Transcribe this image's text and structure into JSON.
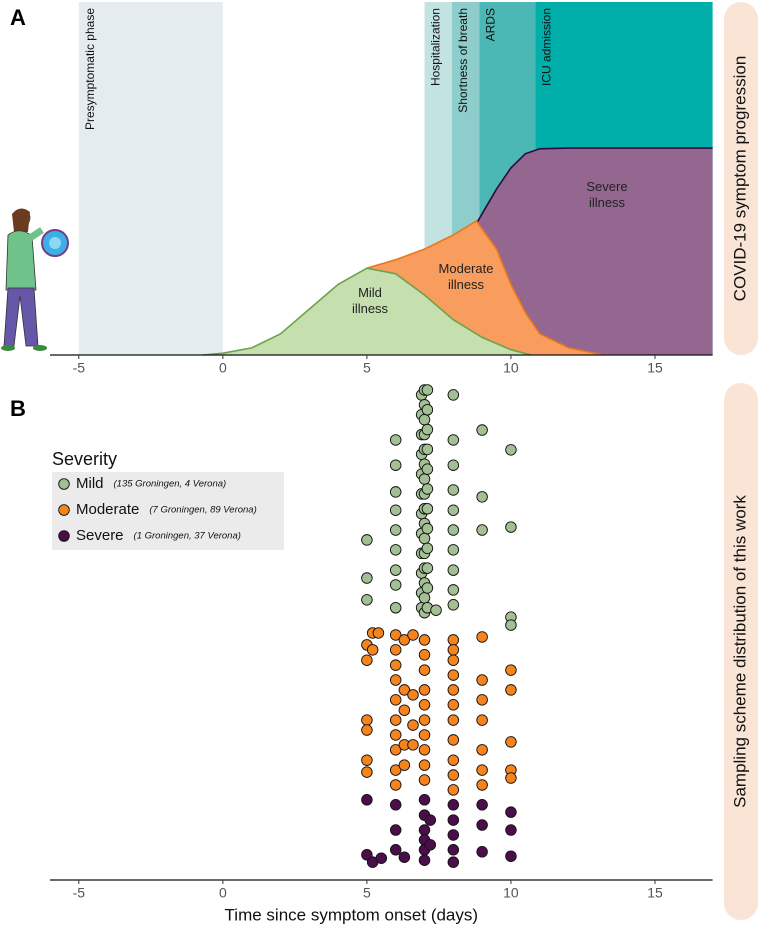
{
  "chart_data": [
    {
      "type": "area",
      "panel": "A",
      "title": "COVID-19 symptom progression",
      "xlim": [
        -6,
        17
      ],
      "xticks": [
        -5,
        0,
        5,
        10,
        15
      ],
      "ylim": [
        0,
        100
      ],
      "spans": [
        {
          "label": "Presymptomatic phase",
          "start": -5,
          "end": 0,
          "color": "#e5ecef"
        },
        {
          "label": "Hospitalization",
          "start": 7,
          "end": 7.95,
          "color": "#c3e3e3"
        },
        {
          "label": "Shortness of breath",
          "start": 7.95,
          "end": 8.9,
          "color": "#8dcdcb"
        },
        {
          "label": "ARDS",
          "start": 8.9,
          "end": 10.85,
          "color": "#4cb8b6"
        },
        {
          "label": "ICU admission",
          "start": 10.85,
          "end": 17,
          "color": "#00aeaa"
        }
      ],
      "series": [
        {
          "name": [
            "Severe",
            "illness"
          ],
          "color": "#936790",
          "line_color": "#2e0a3e",
          "x": [
            8.0,
            8.5,
            9.0,
            9.5,
            10.0,
            10.5,
            11.0,
            12.0,
            17
          ],
          "values": [
            28,
            33,
            40,
            47,
            53,
            57,
            58.4,
            58.6,
            58.6
          ]
        },
        {
          "name": [
            "Moderate",
            "illness"
          ],
          "color": "#f89d5e",
          "line_color": "#e8781d",
          "x": [
            5,
            6,
            7,
            8,
            8.8,
            9.5,
            10,
            10.5,
            11,
            12,
            13.2
          ],
          "values": [
            24.6,
            27,
            30,
            34,
            38,
            30,
            20,
            12,
            6,
            2,
            0
          ]
        },
        {
          "name": [
            "Mild",
            "illness"
          ],
          "color": "#c6dfae",
          "line_color": "#6ca24c",
          "x": [
            -0.7,
            0,
            1,
            2,
            3,
            4,
            5,
            6,
            7,
            8,
            9,
            10,
            10.7
          ],
          "values": [
            0,
            0.5,
            2,
            6,
            13,
            20,
            24.6,
            23,
            17,
            10,
            5,
            1.5,
            0
          ]
        }
      ]
    },
    {
      "type": "scatter",
      "panel": "B",
      "title": "Sampling scheme distribution of this work",
      "xlabel": "Time since symptom onset (days)",
      "xlim": [
        -6,
        17
      ],
      "xticks": [
        -5,
        0,
        5,
        10,
        15
      ],
      "ylim": [
        0,
        100
      ],
      "legend_title": "Severity",
      "series": [
        {
          "name": "Mild",
          "note": "(135 Groningen, 4 Verona)",
          "color": "#a3bf94",
          "x": [
            5,
            5,
            5,
            6,
            6,
            6,
            6,
            6,
            6,
            6,
            6,
            6,
            6.9,
            6.9,
            6.9,
            6.9,
            6.9,
            6.9,
            6.9,
            6.9,
            6.9,
            6.9,
            6.9,
            6.9,
            7,
            7,
            7,
            7,
            7,
            7,
            7,
            7,
            7,
            7,
            7,
            7,
            7,
            7,
            7,
            7,
            7.1,
            7.1,
            7.1,
            7.1,
            7.1,
            7.1,
            7.1,
            7.1,
            7.1,
            7.1,
            7.1,
            7.1,
            7.4,
            8,
            8,
            8,
            8,
            8,
            8,
            8,
            8,
            8,
            8,
            9,
            9,
            9,
            10,
            10,
            10,
            10
          ],
          "y": [
            68.7,
            61,
            56.6,
            88.9,
            83.8,
            78.4,
            74.7,
            70.7,
            66.7,
            62.6,
            59.6,
            55,
            98,
            94,
            90,
            86,
            82,
            78,
            74,
            70,
            66,
            62,
            58,
            55,
            99,
            96,
            93,
            90,
            87,
            84,
            81,
            78,
            75,
            72,
            69,
            66,
            63,
            60,
            57,
            54,
            99,
            95,
            91,
            87,
            83,
            79,
            75,
            71,
            67,
            63,
            59,
            55,
            54.5,
            98,
            88.9,
            83.8,
            78.8,
            74.7,
            70.7,
            66.7,
            62.6,
            58.6,
            55.6,
            90.9,
            77.4,
            70.7,
            86.9,
            71.3,
            53.1,
            51.5
          ]
        },
        {
          "name": "Moderate",
          "note": "(7 Groningen, 89 Verona)",
          "color": "#f5841f",
          "x": [
            5,
            5,
            5,
            5,
            5,
            5,
            5.2,
            5.2,
            5.4,
            6,
            6,
            6,
            6,
            6,
            6,
            6,
            6,
            6,
            6,
            6.3,
            6.3,
            6.3,
            6.3,
            6.3,
            6.6,
            6.6,
            6.6,
            6.6,
            7,
            7,
            7,
            7,
            7,
            7,
            7,
            7,
            7,
            7,
            8,
            8,
            8,
            8,
            8,
            8,
            8,
            8,
            8,
            8,
            8,
            9,
            9,
            9,
            9,
            9,
            9,
            9,
            10,
            10,
            10,
            10,
            10
          ],
          "y": [
            47.5,
            44.4,
            32.3,
            30.3,
            24.2,
            21.8,
            46.5,
            49.9,
            49.9,
            49.5,
            46.5,
            43.4,
            40.4,
            36.4,
            32.3,
            29.3,
            26.3,
            22.2,
            19.2,
            48.5,
            38.4,
            34.3,
            27.3,
            23.2,
            49.5,
            37.4,
            31.3,
            27.3,
            48.5,
            45.5,
            42.4,
            38.4,
            35.4,
            32.3,
            29.3,
            26.3,
            23.2,
            20.2,
            48.5,
            46.5,
            44.4,
            41.4,
            38.4,
            35.4,
            32.3,
            28.3,
            24.2,
            21.2,
            18.2,
            49.1,
            40.4,
            36.4,
            32.3,
            26.3,
            22.2,
            19.2,
            42.4,
            38.4,
            27.9,
            22.2,
            20.6
          ]
        },
        {
          "name": "Severe",
          "note": "(1 Groningen, 37 Verona)",
          "color": "#4b0e4b",
          "x": [
            5,
            5,
            5.2,
            5.5,
            6,
            6,
            6,
            6.3,
            7,
            7,
            7,
            7,
            7,
            7,
            7.2,
            7.2,
            8,
            8,
            8,
            8,
            8,
            9,
            9,
            9,
            10,
            10,
            10
          ],
          "y": [
            16.2,
            5.1,
            3.6,
            4.4,
            15.2,
            10.1,
            6.1,
            4.6,
            16.2,
            13.1,
            10.1,
            8.1,
            6.1,
            4,
            12.1,
            7.1,
            15.2,
            12.1,
            9.1,
            6.1,
            3.6,
            15.2,
            11.1,
            5.7,
            13.7,
            10.1,
            4.8
          ]
        }
      ]
    }
  ]
}
